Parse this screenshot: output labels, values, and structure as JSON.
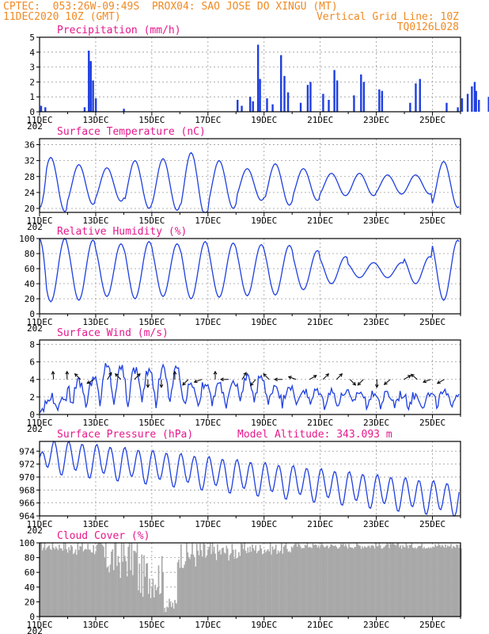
{
  "header": {
    "line1_left": "CPTEC:  053:26W-09:49S  PROX04: SAO JOSE DO XINGU (MT)",
    "line2_left": "11DEC2020 10Z (GMT)",
    "line2_right": "Vertical Grid Line: 10Z",
    "line3_right": "TQ0126L028"
  },
  "colors": {
    "header": "#f08a24",
    "title": "#e6188c",
    "series": "#1f3fe0",
    "cloud": "#a8a8a8"
  },
  "x_axis": {
    "labels": [
      "11DEC",
      "13DEC",
      "15DEC",
      "17DEC",
      "19DEC",
      "21DEC",
      "23DEC",
      "25DEC"
    ],
    "year_stub": "202"
  },
  "chart_data": [
    {
      "type": "bar",
      "title": "Precipitation (mm/h)",
      "ylim": [
        0,
        5
      ],
      "yticks": [
        0,
        1,
        2,
        3,
        4,
        5
      ],
      "grid": true,
      "spikes": [
        {
          "day": 0.05,
          "value": 0.4
        },
        {
          "day": 0.2,
          "value": 0.3
        },
        {
          "day": 1.6,
          "value": 0.3
        },
        {
          "day": 1.75,
          "value": 4.1
        },
        {
          "day": 1.82,
          "value": 3.4
        },
        {
          "day": 1.9,
          "value": 2.1
        },
        {
          "day": 2.0,
          "value": 0.9
        },
        {
          "day": 3.0,
          "value": 0.2
        },
        {
          "day": 7.05,
          "value": 0.8
        },
        {
          "day": 7.2,
          "value": 0.4
        },
        {
          "day": 7.5,
          "value": 1.0
        },
        {
          "day": 7.6,
          "value": 0.7
        },
        {
          "day": 7.78,
          "value": 4.5
        },
        {
          "day": 7.85,
          "value": 2.2
        },
        {
          "day": 8.1,
          "value": 0.9
        },
        {
          "day": 8.3,
          "value": 0.5
        },
        {
          "day": 8.6,
          "value": 3.8
        },
        {
          "day": 8.72,
          "value": 2.4
        },
        {
          "day": 8.85,
          "value": 1.3
        },
        {
          "day": 9.3,
          "value": 0.6
        },
        {
          "day": 9.55,
          "value": 1.8
        },
        {
          "day": 9.65,
          "value": 2.0
        },
        {
          "day": 10.1,
          "value": 1.2
        },
        {
          "day": 10.3,
          "value": 0.8
        },
        {
          "day": 10.5,
          "value": 2.8
        },
        {
          "day": 10.6,
          "value": 2.1
        },
        {
          "day": 11.2,
          "value": 1.1
        },
        {
          "day": 11.45,
          "value": 2.5
        },
        {
          "day": 11.55,
          "value": 2.0
        },
        {
          "day": 12.1,
          "value": 1.5
        },
        {
          "day": 12.2,
          "value": 1.4
        },
        {
          "day": 13.2,
          "value": 0.6
        },
        {
          "day": 13.4,
          "value": 1.9
        },
        {
          "day": 13.55,
          "value": 2.2
        },
        {
          "day": 14.5,
          "value": 0.6
        },
        {
          "day": 14.9,
          "value": 0.3
        },
        {
          "day": 15.05,
          "value": 0.9
        },
        {
          "day": 15.25,
          "value": 1.2
        },
        {
          "day": 15.4,
          "value": 1.7
        },
        {
          "day": 15.5,
          "value": 2.0
        },
        {
          "day": 15.55,
          "value": 1.4
        },
        {
          "day": 15.65,
          "value": 0.8
        },
        {
          "day": 16.0,
          "value": 1.0
        }
      ]
    },
    {
      "type": "line",
      "title": "Surface Temperature (nC)",
      "ylim": [
        19,
        37.5
      ],
      "yticks": [
        20,
        24,
        28,
        32,
        36
      ],
      "grid": true,
      "base": 26.0,
      "amp": 5.0,
      "day_amps": [
        6.8,
        5.0,
        4.2,
        6.0,
        6.5,
        8.0,
        6.0,
        4.0,
        5.2,
        4.0,
        2.8,
        2.8,
        2.4,
        2.4,
        5.8,
        3.2,
        3.0
      ],
      "first_value": 20.2
    },
    {
      "type": "line",
      "title": "Relative Humidity (%)",
      "ylim": [
        0,
        100
      ],
      "yticks": [
        0,
        20,
        40,
        60,
        80,
        100
      ],
      "grid": true,
      "base": 58,
      "amp": -34,
      "day_amps": [
        42,
        40,
        35,
        38,
        35,
        38,
        36,
        34,
        33,
        26,
        18,
        10,
        10,
        18,
        40,
        20,
        20
      ],
      "first_value": 100
    },
    {
      "type": "line",
      "title": "Surface Wind (m/s)",
      "ylim": [
        0,
        8.5
      ],
      "yticks": [
        0,
        2,
        4,
        6,
        8
      ],
      "grid": true,
      "base": 2.6,
      "amp": 1.6,
      "day_amps": [
        1.0,
        2.8,
        4.6,
        4.2,
        4.4,
        2.6,
        2.4,
        3.5,
        2.4,
        1.8,
        1.6,
        1.6,
        1.3,
        1.2,
        1.4,
        1.5,
        1.6
      ],
      "first_value": 0.2,
      "wind_arrows_deg": [
        95,
        90,
        135,
        210,
        60,
        135,
        45,
        270,
        270,
        90,
        225,
        200,
        90,
        180,
        60,
        230,
        135,
        180,
        160,
        30,
        45,
        45,
        315,
        225,
        270,
        220,
        30,
        140,
        200,
        210
      ]
    },
    {
      "type": "line",
      "title": "Surface Pressure (hPa)",
      "annotation": "Model Altitude: 343.093 m",
      "ylim": [
        964,
        975.5
      ],
      "yticks": [
        964,
        966,
        968,
        970,
        972,
        974
      ],
      "grid": true,
      "base": 968.5,
      "amp": 2.4,
      "trend_start": 973.5,
      "trend_end": 966.5,
      "first_value": 973.0
    },
    {
      "type": "bar",
      "title": "Cloud Cover (%)",
      "ylim": [
        0,
        100
      ],
      "yticks": [
        0,
        20,
        40,
        60,
        80,
        100
      ],
      "grid": true,
      "segments": [
        {
          "from": 0.0,
          "to": 0.9,
          "value": 95,
          "jitter": 6
        },
        {
          "from": 0.9,
          "to": 2.3,
          "value": 93,
          "jitter": 10
        },
        {
          "from": 2.3,
          "to": 3.5,
          "value": 80,
          "jitter": 30
        },
        {
          "from": 3.5,
          "to": 4.4,
          "value": 55,
          "jitter": 30
        },
        {
          "from": 4.4,
          "to": 4.9,
          "value": 15,
          "jitter": 10
        },
        {
          "from": 4.9,
          "to": 6.2,
          "value": 85,
          "jitter": 20
        },
        {
          "from": 6.2,
          "to": 7.2,
          "value": 88,
          "jitter": 12
        },
        {
          "from": 7.2,
          "to": 9.0,
          "value": 92,
          "jitter": 8
        },
        {
          "from": 9.0,
          "to": 15.0,
          "value": 96,
          "jitter": 4
        }
      ]
    }
  ]
}
